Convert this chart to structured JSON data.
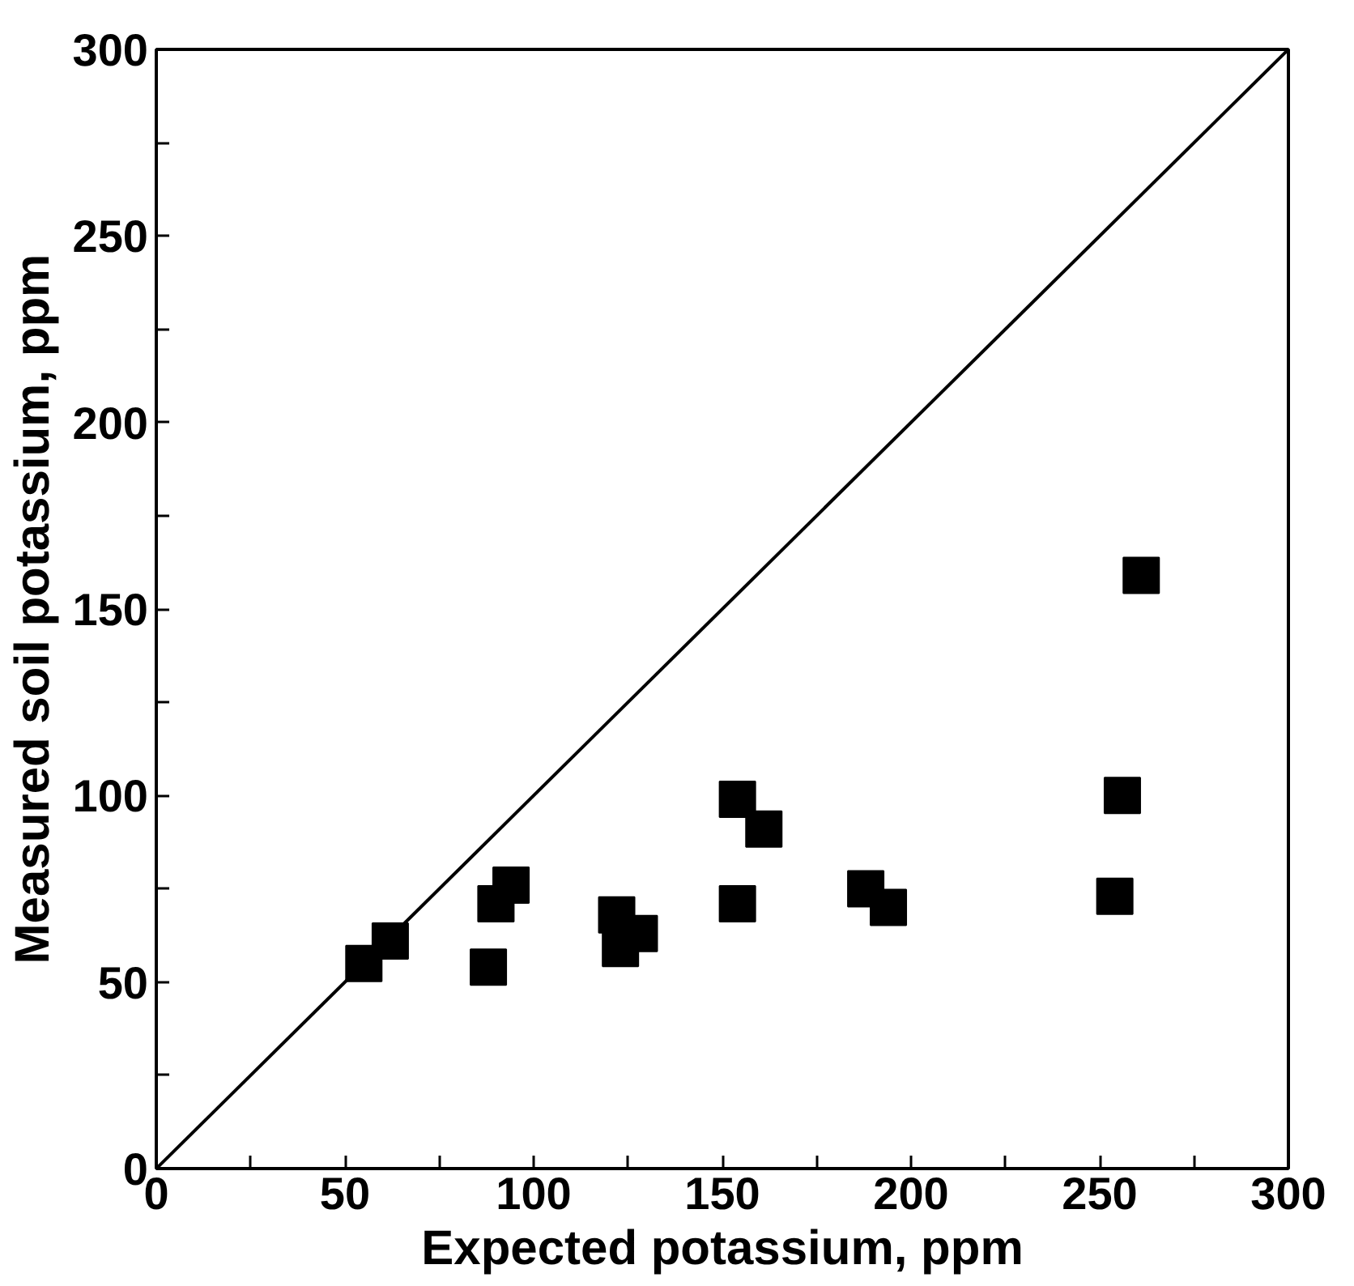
{
  "chart_data": {
    "type": "scatter",
    "xlabel": "Expected potassium, ppm",
    "ylabel": "Measured soil potassium, ppm",
    "xlim": [
      0,
      300
    ],
    "ylim": [
      0,
      300
    ],
    "xticks": [
      0,
      {
        "value": 25,
        "label": null
      },
      50,
      {
        "value": 75,
        "label": null
      },
      100,
      {
        "value": 125,
        "label": null
      },
      150,
      {
        "value": 175,
        "label": null
      },
      200,
      {
        "value": 225,
        "label": null
      },
      250,
      {
        "value": 275,
        "label": null
      },
      300
    ],
    "yticks": [
      0,
      {
        "value": 25,
        "label": null
      },
      50,
      {
        "value": 75,
        "label": null
      },
      100,
      {
        "value": 125,
        "label": null
      },
      150,
      {
        "value": 175,
        "label": null
      },
      200,
      {
        "value": 225,
        "label": null
      },
      250,
      {
        "value": 275,
        "label": null
      },
      300
    ],
    "grid": false,
    "marker": "square",
    "series": [
      {
        "color": "#000000",
        "x": [
          55,
          62,
          88,
          90,
          94,
          122,
          123,
          128,
          154,
          154,
          161,
          188,
          194,
          254,
          256,
          261
        ],
        "values": [
          55,
          61,
          54,
          71,
          76,
          68,
          59,
          63,
          71,
          99,
          91,
          75,
          70,
          73,
          100,
          159
        ]
      },
      {
        "type": "line",
        "color": "#000000",
        "x": [
          0,
          300
        ],
        "values": [
          0,
          300
        ],
        "marker": "none",
        "line_style": "solid"
      }
    ]
  }
}
